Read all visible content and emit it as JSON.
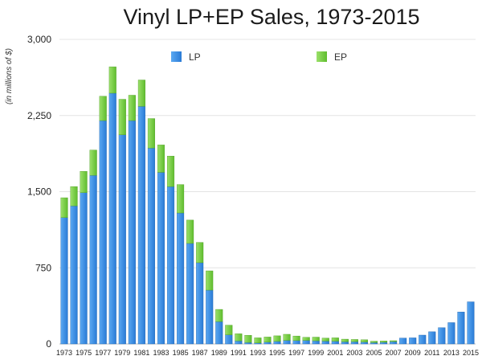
{
  "chart_data": {
    "type": "bar",
    "stacked": true,
    "title": "Vinyl LP+EP Sales, 1973-2015",
    "ylabel": "(in millions of $)",
    "xlabel": "",
    "ylim": [
      0,
      3000
    ],
    "yticks": [
      0,
      750,
      1500,
      2250,
      3000
    ],
    "ytick_labels": [
      "0",
      "750",
      "1,500",
      "2,250",
      "3,000"
    ],
    "grid": true,
    "legend_position": "top",
    "categories": [
      "1973",
      "1974",
      "1975",
      "1976",
      "1977",
      "1978",
      "1979",
      "1980",
      "1981",
      "1982",
      "1983",
      "1984",
      "1985",
      "1986",
      "1987",
      "1988",
      "1989",
      "1990",
      "1991",
      "1992",
      "1993",
      "1994",
      "1995",
      "1996",
      "1997",
      "1998",
      "1999",
      "2000",
      "2001",
      "2002",
      "2003",
      "2004",
      "2005",
      "2006",
      "2007",
      "2008",
      "2009",
      "2010",
      "2011",
      "2012",
      "2013",
      "2014",
      "2015"
    ],
    "xtick_labels": [
      "1973",
      "1975",
      "1977",
      "1979",
      "1981",
      "1983",
      "1985",
      "1987",
      "1989",
      "1991",
      "1993",
      "1995",
      "1997",
      "1999",
      "2001",
      "2003",
      "2005",
      "2007",
      "2009",
      "2011",
      "2013",
      "2015"
    ],
    "series": [
      {
        "name": "LP",
        "color": "#3a8de0",
        "values": [
          1245,
          1360,
          1490,
          1660,
          2200,
          2470,
          2060,
          2200,
          2340,
          1930,
          1690,
          1550,
          1290,
          990,
          800,
          530,
          220,
          90,
          30,
          15,
          10,
          18,
          25,
          35,
          33,
          35,
          31,
          28,
          27,
          21,
          22,
          19,
          13,
          16,
          23,
          58,
          60,
          87,
          120,
          160,
          210,
          315,
          415
        ]
      },
      {
        "name": "EP",
        "color": "#7ccd4a",
        "values": [
          195,
          190,
          210,
          250,
          240,
          260,
          350,
          250,
          260,
          290,
          270,
          300,
          280,
          230,
          200,
          190,
          120,
          95,
          70,
          70,
          50,
          50,
          55,
          60,
          45,
          30,
          36,
          29,
          33,
          26,
          22,
          22,
          14,
          13,
          9,
          0,
          0,
          0,
          0,
          0,
          0,
          0,
          0
        ]
      }
    ]
  }
}
